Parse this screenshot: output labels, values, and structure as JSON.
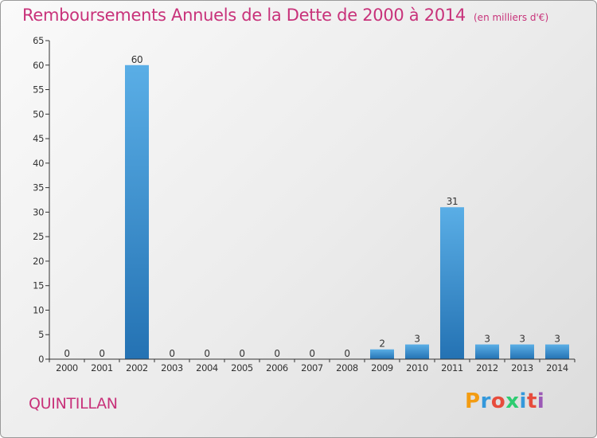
{
  "title": "Remboursements Annuels de la Dette de 2000 à 2014",
  "unit": "(en milliers d'€)",
  "commune": "QUINTILLAN",
  "logo": {
    "letters": [
      "P",
      "r",
      "o",
      "x",
      "i",
      "t",
      "i"
    ],
    "colors": [
      "#f39c12",
      "#3498db",
      "#e74c3c",
      "#2ecc71",
      "#3498db",
      "#e74c3c",
      "#9b59b6"
    ]
  },
  "colors": {
    "title": "#c8327a",
    "bar_top": "#5aaee6",
    "bar_bottom": "#2472b3",
    "axis": "#333333"
  },
  "chart_data": {
    "type": "bar",
    "title": "Remboursements Annuels de la Dette de 2000 à 2014",
    "xlabel": "",
    "ylabel": "",
    "categories": [
      "2000",
      "2001",
      "2002",
      "2003",
      "2004",
      "2005",
      "2006",
      "2007",
      "2008",
      "2009",
      "2010",
      "2011",
      "2012",
      "2013",
      "2014"
    ],
    "values": [
      0,
      0,
      60,
      0,
      0,
      0,
      0,
      0,
      0,
      2,
      3,
      31,
      3,
      3,
      3
    ],
    "data_labels": [
      "0",
      "0",
      "60",
      "0",
      "0",
      "0",
      "0",
      "0",
      "0",
      "2",
      "3",
      "31",
      "3",
      "3",
      "3"
    ],
    "ylim": [
      0,
      65
    ],
    "yticks": [
      "0",
      "5",
      "10",
      "15",
      "20",
      "25",
      "30",
      "35",
      "40",
      "45",
      "50",
      "55",
      "60",
      "65"
    ],
    "grid": false,
    "legend": "none"
  }
}
